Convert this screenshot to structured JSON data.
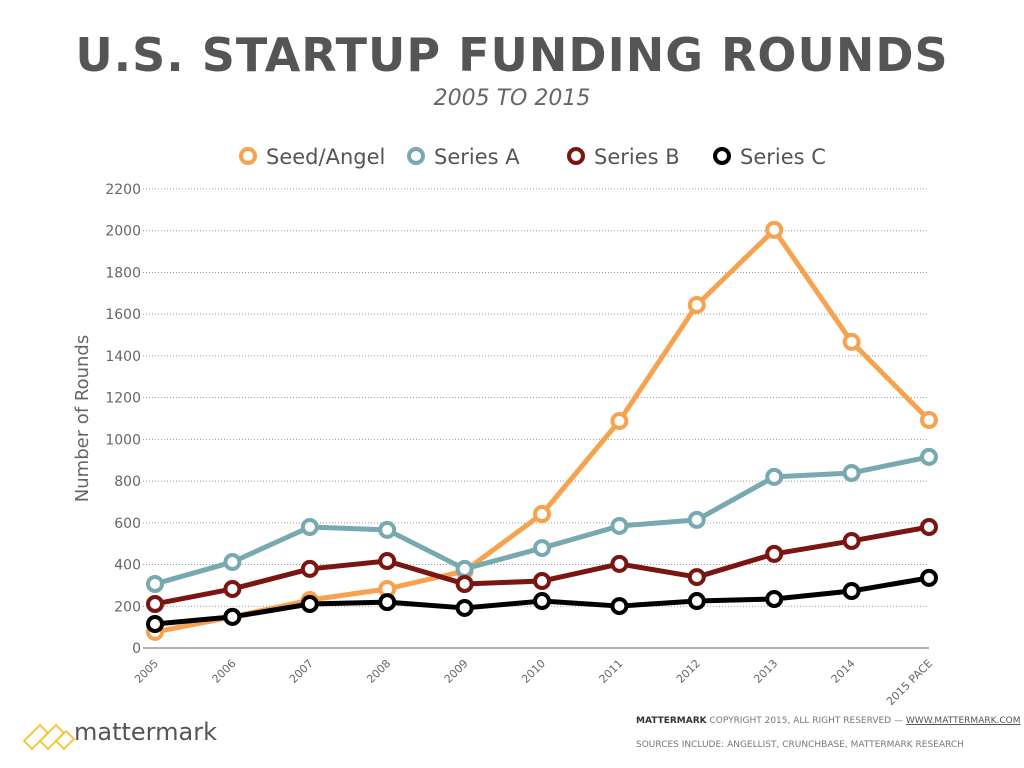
{
  "chart_data": {
    "type": "line",
    "title": "U.S. STARTUP FUNDING ROUNDS",
    "subtitle": "2005 TO 2015",
    "xlabel": "",
    "ylabel": "Number of Rounds",
    "ylim": [
      0,
      2200
    ],
    "yticks": [
      0,
      200,
      400,
      600,
      800,
      1000,
      1200,
      1400,
      1600,
      1800,
      2000,
      2200
    ],
    "grid": true,
    "legend": "top",
    "categories": [
      "2005",
      "2006",
      "2007",
      "2008",
      "2009",
      "2010",
      "2011",
      "2012",
      "2013",
      "2014",
      "2015 PACE"
    ],
    "series": [
      {
        "name": "Seed/Angel",
        "color": "#F7A24F",
        "values": [
          77,
          149,
          230,
          283,
          369,
          642,
          1088,
          1644,
          2004,
          1467,
          1093
        ]
      },
      {
        "name": "Series A",
        "color": "#78A9B0",
        "values": [
          307,
          412,
          580,
          566,
          379,
          479,
          585,
          614,
          820,
          839,
          916
        ]
      },
      {
        "name": "Series B",
        "color": "#7A1512",
        "values": [
          211,
          283,
          379,
          417,
          307,
          321,
          403,
          340,
          451,
          513,
          580
        ]
      },
      {
        "name": "Series C",
        "color": "#000000",
        "values": [
          115,
          149,
          211,
          220,
          192,
          225,
          201,
          225,
          235,
          273,
          336
        ]
      }
    ]
  },
  "footer": {
    "brand": "mattermark",
    "copyright_brand": "MATTERMARK",
    "copyright": "COPYRIGHT 2015, ALL RIGHT RESERVED —",
    "url": "WWW.MATTERMARK.COM",
    "sources": "SOURCES INCLUDE: ANGELLIST, CRUNCHBASE, MATTERMARK RESEARCH",
    "logo_color": "#F5C842"
  }
}
